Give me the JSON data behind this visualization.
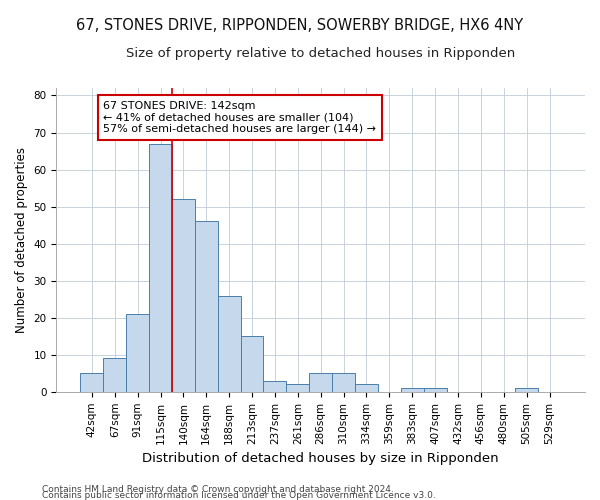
{
  "title_line1": "67, STONES DRIVE, RIPPONDEN, SOWERBY BRIDGE, HX6 4NY",
  "title_line2": "Size of property relative to detached houses in Ripponden",
  "xlabel": "Distribution of detached houses by size in Ripponden",
  "ylabel": "Number of detached properties",
  "categories": [
    "42sqm",
    "67sqm",
    "91sqm",
    "115sqm",
    "140sqm",
    "164sqm",
    "188sqm",
    "213sqm",
    "237sqm",
    "261sqm",
    "286sqm",
    "310sqm",
    "334sqm",
    "359sqm",
    "383sqm",
    "407sqm",
    "432sqm",
    "456sqm",
    "480sqm",
    "505sqm",
    "529sqm"
  ],
  "values": [
    5,
    9,
    21,
    67,
    52,
    46,
    26,
    15,
    3,
    2,
    5,
    5,
    2,
    0,
    1,
    1,
    0,
    0,
    0,
    1,
    0
  ],
  "bar_color": "#c6d9ec",
  "bar_edge_color": "#4a7faa",
  "vline_color": "#cc0000",
  "vline_index": 4,
  "annotation_line1": "67 STONES DRIVE: 142sqm",
  "annotation_line2": "← 41% of detached houses are smaller (104)",
  "annotation_line3": "57% of semi-detached houses are larger (144) →",
  "annotation_box_facecolor": "#ffffff",
  "annotation_box_edgecolor": "#cc0000",
  "ylim": [
    0,
    82
  ],
  "yticks": [
    0,
    10,
    20,
    30,
    40,
    50,
    60,
    70,
    80
  ],
  "footnote1": "Contains HM Land Registry data © Crown copyright and database right 2024.",
  "footnote2": "Contains public sector information licensed under the Open Government Licence v3.0.",
  "title1_fontsize": 10.5,
  "title2_fontsize": 9.5,
  "xlabel_fontsize": 9.5,
  "ylabel_fontsize": 8.5,
  "tick_fontsize": 7.5,
  "annotation_fontsize": 8,
  "footnote_fontsize": 6.5,
  "background_color": "#ffffff",
  "grid_color": "#c0ccd8"
}
